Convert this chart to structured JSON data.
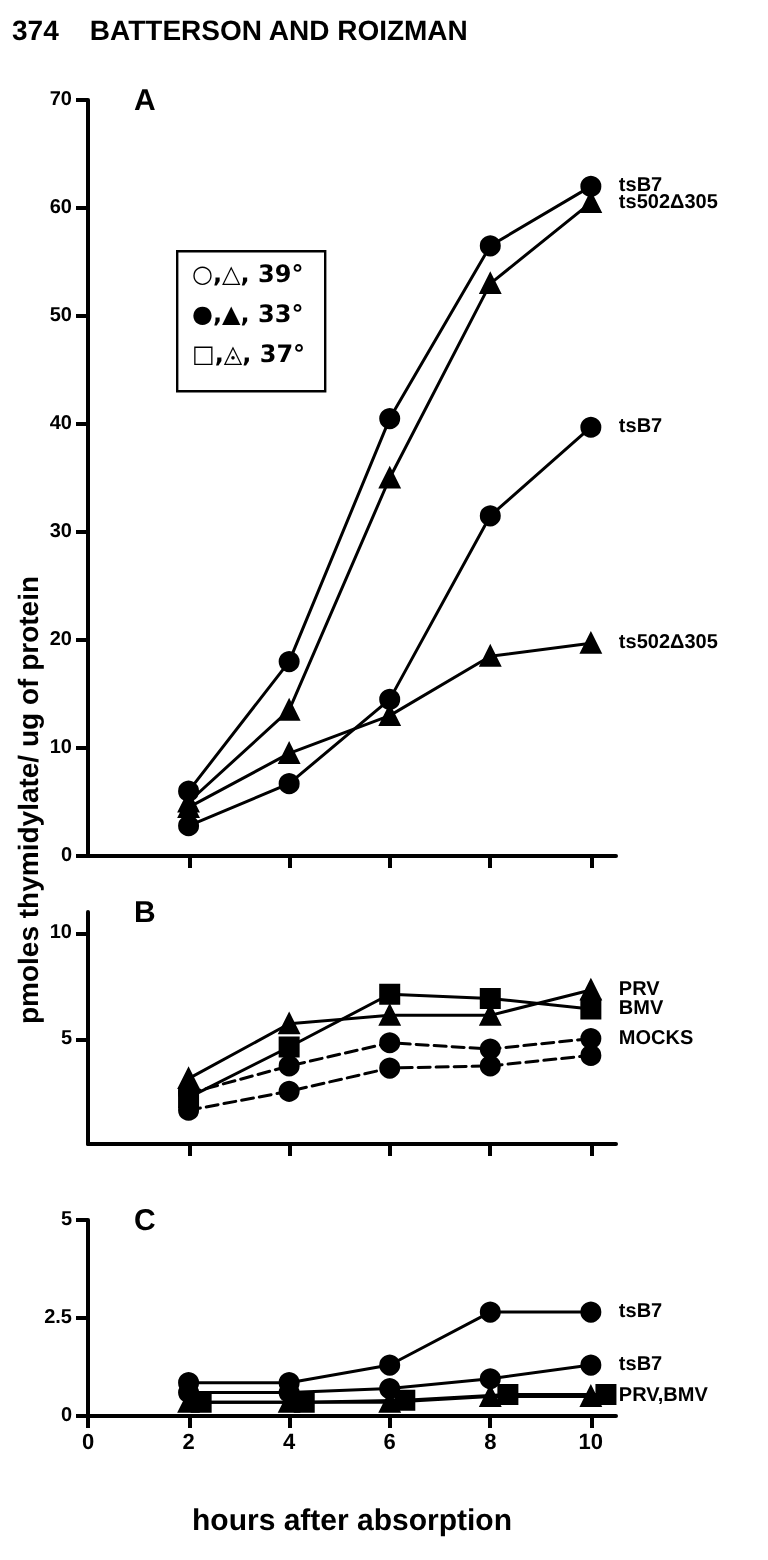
{
  "chart_data": [
    {
      "type": "line",
      "title": "A",
      "ylabel": "pmoles  thymidylate/ ug of protein",
      "annotations": [
        "374    BATTERSON AND ROIZMAN",
        "○,△, 39°",
        "●,▲, 33°",
        "□,◬, 37°"
      ],
      "x": [
        2,
        4,
        6,
        8,
        10
      ],
      "xlim": [
        0,
        10.5
      ],
      "xticks": [
        2,
        4,
        6,
        8,
        10
      ],
      "ylim": [
        0,
        70
      ],
      "yticks": [
        0,
        10,
        20,
        30,
        40,
        50,
        60,
        70
      ],
      "tick_labels": "y",
      "series": [
        {
          "name": "tsB7",
          "color": "#000000",
          "marker": "circle",
          "values": [
            6,
            18,
            40.5,
            56.5,
            62
          ]
        },
        {
          "name": "ts502Δ305",
          "color": "#000000",
          "marker": "triangle",
          "values": [
            5,
            13.5,
            35,
            53,
            60.5
          ]
        },
        {
          "name": "tsB7",
          "color": "#000000",
          "marker": "circle",
          "values": [
            2.8,
            6.7,
            14.5,
            31.5,
            39.7
          ]
        },
        {
          "name": "ts502Δ305",
          "color": "#000000",
          "marker": "triangle",
          "values": [
            4.5,
            9.5,
            13,
            18.5,
            19.7
          ]
        }
      ]
    },
    {
      "type": "line",
      "title": "B",
      "x": [
        2,
        4,
        6,
        8,
        10
      ],
      "xlim": [
        0,
        10.5
      ],
      "xticks": [
        2,
        4,
        6,
        8,
        10
      ],
      "ylim": [
        0,
        11
      ],
      "yticks": [
        5,
        10
      ],
      "tick_labels": "y",
      "series": [
        {
          "name": "PRV",
          "color": "#000000",
          "marker": "triangle",
          "values": [
            3.1,
            5.7,
            6.1,
            6.1,
            7.3
          ]
        },
        {
          "name": "BMV",
          "color": "#000000",
          "marker": "square",
          "values": [
            2.2,
            4.6,
            7.1,
            6.9,
            6.4
          ]
        },
        {
          "name": "MOCKS",
          "color": "#000000",
          "marker": "circle",
          "line_style": "dashed",
          "values": [
            2.4,
            3.7,
            4.8,
            4.5,
            5.0
          ]
        },
        {
          "color": "#000000",
          "marker": "circle",
          "line_style": "dashed",
          "values": [
            1.6,
            2.5,
            3.6,
            3.7,
            4.2
          ]
        }
      ]
    },
    {
      "type": "line",
      "title": "C",
      "xlabel": "hours after absorption",
      "x": [
        2,
        4,
        6,
        8,
        10
      ],
      "xlim": [
        0,
        10.5
      ],
      "xticks": [
        0,
        2,
        4,
        6,
        8,
        10
      ],
      "ylim": [
        0,
        5
      ],
      "yticks": [
        0,
        2.5,
        5
      ],
      "series": [
        {
          "name": "tsB7",
          "color": "#000000",
          "marker": "circle",
          "values": [
            0.85,
            0.85,
            1.3,
            2.65,
            2.65
          ]
        },
        {
          "name": "tsB7",
          "color": "#000000",
          "marker": "circle",
          "values": [
            0.6,
            0.6,
            0.7,
            0.95,
            1.3
          ]
        },
        {
          "name": "PRV,BMV",
          "color": "#000000",
          "marker": "triangle",
          "values": [
            0.35,
            0.35,
            0.35,
            0.5,
            0.5
          ]
        },
        {
          "color": "#000000",
          "marker": "square",
          "x": [
            2.25,
            4.3,
            6.3,
            8.35,
            10.3
          ],
          "values": [
            0.35,
            0.35,
            0.4,
            0.55,
            0.55
          ]
        }
      ]
    }
  ]
}
